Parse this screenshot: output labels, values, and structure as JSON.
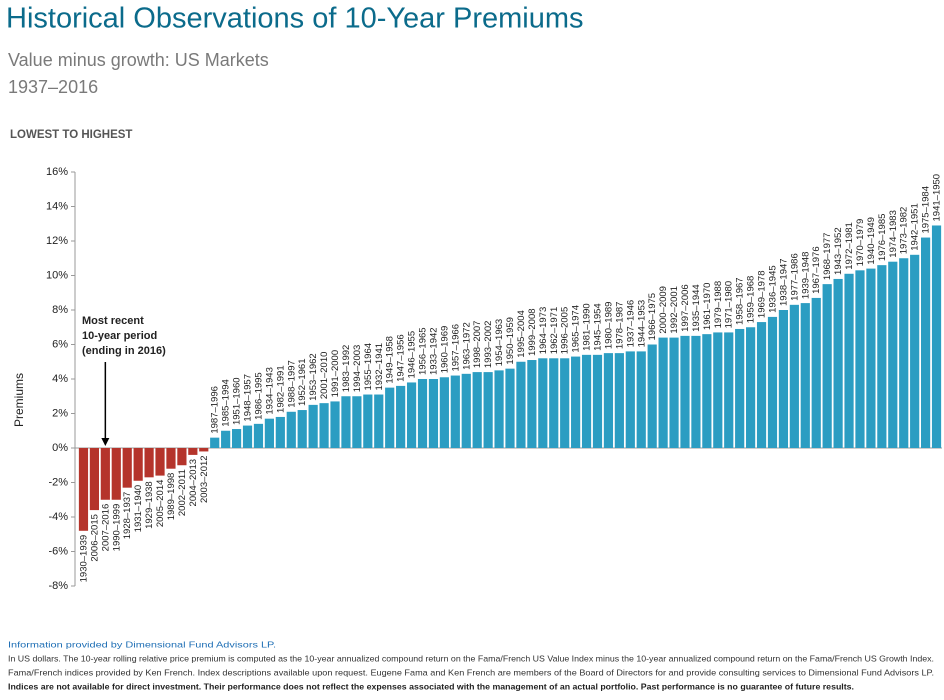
{
  "chart_data": {
    "type": "bar",
    "title": "Historical Observations of 10-Year Premiums",
    "subtitle": [
      "Value minus growth: US Markets",
      "1937–2016"
    ],
    "section_label": "LOWEST TO HIGHEST",
    "y_label": "Premiums",
    "annotation": [
      "Most recent",
      "10-year period",
      "(ending in 2016)"
    ],
    "annotation_target": 2,
    "colors": {
      "negative": "#b5342b",
      "positive": "#2b9dc2"
    },
    "ylim": [
      -8,
      16
    ],
    "yticks": [
      {
        "value": -8,
        "label": "-8%"
      },
      {
        "value": -6,
        "label": "-6%"
      },
      {
        "value": -4,
        "label": "-4%"
      },
      {
        "value": -2,
        "label": "-2%"
      },
      {
        "value": 0,
        "label": "0%"
      },
      {
        "value": 2,
        "label": "2%"
      },
      {
        "value": 4,
        "label": "4%"
      },
      {
        "value": 6,
        "label": "6%"
      },
      {
        "value": 8,
        "label": "8%"
      },
      {
        "value": 10,
        "label": "10%"
      },
      {
        "value": 12,
        "label": "12%"
      },
      {
        "value": 14,
        "label": "14%"
      },
      {
        "value": 16,
        "label": "16%"
      }
    ],
    "categories": [
      "1930–1939",
      "2006–2015",
      "2007–2016",
      "1990–1999",
      "1928–1937",
      "1931–1940",
      "1929–1938",
      "2005–2014",
      "1989–1998",
      "2002–2011",
      "2004–2013",
      "2003–2012",
      "1987–1996",
      "1985–1994",
      "1951–1960",
      "1948–1957",
      "1986–1995",
      "1934–1943",
      "1982–1991",
      "1988–1997",
      "1952–1961",
      "1953–1962",
      "2001–2010",
      "1991–2000",
      "1983–1992",
      "1994–2003",
      "1955–1964",
      "1932–1941",
      "1949–1958",
      "1947–1956",
      "1946–1955",
      "1956–1965",
      "1933–1942",
      "1960–1969",
      "1957–1966",
      "1963–1972",
      "1998–2007",
      "1993–2002",
      "1954–1963",
      "1950–1959",
      "1995–2004",
      "1999–2008",
      "1964–1973",
      "1962–1971",
      "1996–2005",
      "1965–1974",
      "1981–1990",
      "1945–1954",
      "1980–1989",
      "1978–1987",
      "1937–1946",
      "1944–1953",
      "1966–1975",
      "2000–2009",
      "1992–2001",
      "1997–2006",
      "1935–1944",
      "1961–1970",
      "1979–1988",
      "1971–1980",
      "1958–1967",
      "1959–1968",
      "1969–1978",
      "1936–1945",
      "1938–1947",
      "1977–1986",
      "1939–1948",
      "1967–1976",
      "1968–1977",
      "1943–1952",
      "1972–1981",
      "1970–1979",
      "1940–1949",
      "1976–1985",
      "1974–1983",
      "1973–1982",
      "1942–1951",
      "1975–1984",
      "1941–1950"
    ],
    "values": [
      -4.8,
      -3.6,
      -3.0,
      -3.0,
      -2.3,
      -1.9,
      -1.7,
      -1.6,
      -1.2,
      -1.0,
      -0.4,
      -0.2,
      0.6,
      1.0,
      1.1,
      1.3,
      1.4,
      1.7,
      1.8,
      2.1,
      2.2,
      2.5,
      2.6,
      2.7,
      3.0,
      3.0,
      3.1,
      3.1,
      3.5,
      3.6,
      3.8,
      4.0,
      4.0,
      4.1,
      4.2,
      4.3,
      4.4,
      4.4,
      4.5,
      4.6,
      5.0,
      5.1,
      5.2,
      5.2,
      5.2,
      5.3,
      5.4,
      5.4,
      5.5,
      5.5,
      5.6,
      5.6,
      6.0,
      6.4,
      6.4,
      6.5,
      6.5,
      6.6,
      6.7,
      6.7,
      6.9,
      7.0,
      7.3,
      7.6,
      8.0,
      8.3,
      8.4,
      8.7,
      9.5,
      9.8,
      10.1,
      10.3,
      10.4,
      10.6,
      10.8,
      11.0,
      11.2,
      12.2,
      12.9
    ]
  },
  "footer": {
    "source": "Information provided by Dimensional Fund Advisors LP.",
    "notes": [
      "In US dollars. The 10-year rolling relative price premium is computed as the 10-year annualized compound return on the Fama/French US Value Index minus the 10-year annualized compound return on the Fama/French US Growth Index.",
      "Fama/French indices provided by Ken French. Index descriptions available upon request. Eugene Fama and Ken French are members of the Board of Directors for and provide consulting services to Dimensional Fund Advisors LP."
    ],
    "disclaimer": "Indices are not available for direct investment. Their performance does not reflect the expenses associated with the management of an actual portfolio. Past performance is no guarantee of future results."
  }
}
